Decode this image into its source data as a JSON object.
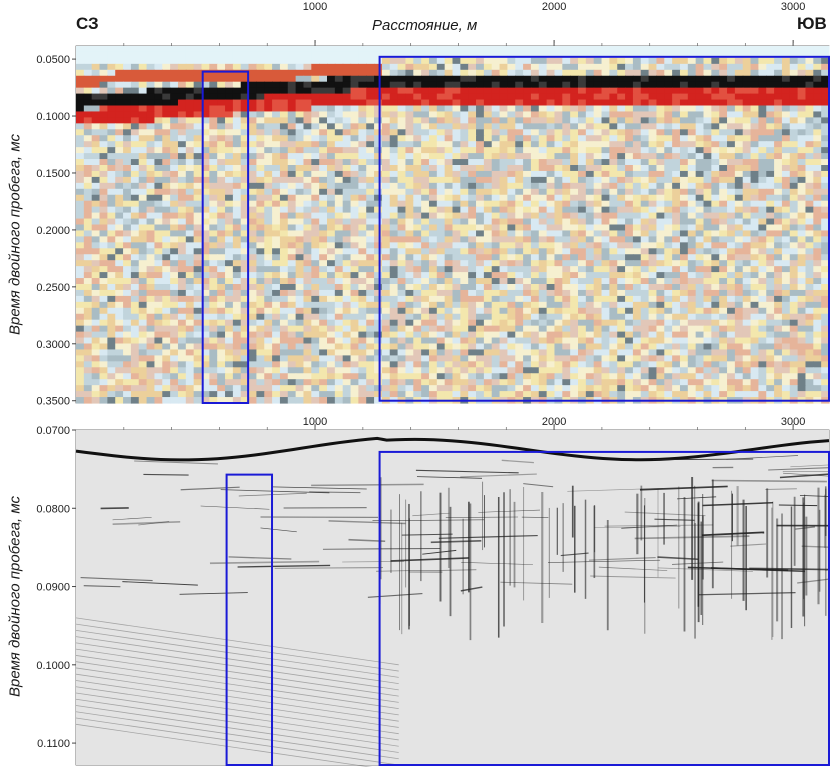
{
  "header": {
    "left_label": "СЗ",
    "right_label": "ЮВ",
    "x_title": "Расстояние, м"
  },
  "chart_data": [
    {
      "type": "heatmap",
      "title": "",
      "xlabel": "Расстояние, м",
      "ylabel": "Время двойного пробега, мс",
      "x_ticks": [
        1000,
        2000,
        3000
      ],
      "y_ticks": [
        "0.0500",
        "0.1000",
        "0.1500",
        "0.2000",
        "0.2500",
        "0.3000",
        "0.3500"
      ],
      "xlim": [
        0,
        3150
      ],
      "ylim": [
        0.0385,
        0.352
      ],
      "colors": [
        "#000000",
        "#d3231f",
        "#f3e7ad",
        "#d8e9f2",
        "#c7dde4"
      ],
      "highlight_boxes": [
        {
          "x_range": [
            530,
            720
          ],
          "y_range": [
            0.061,
            0.352
          ]
        },
        {
          "x_range": [
            1270,
            3150
          ],
          "y_range": [
            0.048,
            0.35
          ]
        }
      ]
    },
    {
      "type": "heatmap",
      "title": "",
      "xlabel": "",
      "ylabel": "Время двойного пробега, мс",
      "x_ticks": [
        1000,
        2000,
        3000
      ],
      "y_ticks": [
        "0.0700",
        "0.0800",
        "0.0900",
        "0.1000",
        "0.1100"
      ],
      "xlim": [
        0,
        3150
      ],
      "ylim": [
        0.07,
        0.1128
      ],
      "colors": [
        "#000000",
        "#dcdcdc"
      ],
      "highlight_boxes": [
        {
          "x_range": [
            630,
            820
          ],
          "y_range": [
            0.0757,
            0.1128
          ]
        },
        {
          "x_range": [
            1270,
            3150
          ],
          "y_range": [
            0.0728,
            0.1128
          ]
        }
      ]
    }
  ]
}
